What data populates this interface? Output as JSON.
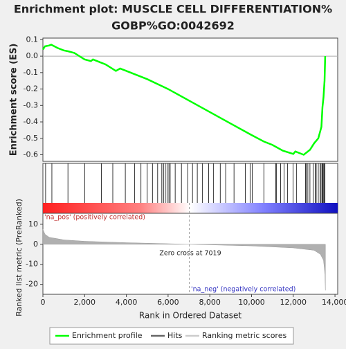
{
  "chart_data": [
    {
      "type": "line",
      "title": "Enrichment plot: MUSCLE CELL DIFFERENTIATION%",
      "subtitle": "GOBP%GO:0042692",
      "ylabel": "Enrichment score (ES)",
      "ylim": [
        -0.64,
        0.11
      ],
      "yticks": [
        0.1,
        {
          "value": 0,
          "label": "0.0"
        },
        -0.1,
        -0.2,
        -0.3,
        -0.4,
        -0.5,
        -0.6
      ],
      "grid": false,
      "series": [
        {
          "name": "Enrichment profile",
          "color": "#00ff00",
          "x": [
            0,
            100,
            300,
            400,
            700,
            1000,
            1200,
            1500,
            2000,
            2300,
            2400,
            2700,
            3000,
            3500,
            3700,
            4000,
            5000,
            6000,
            7000,
            8000,
            9000,
            10000,
            10600,
            11000,
            11500,
            12000,
            12100,
            12500,
            12800,
            13000,
            13200,
            13350,
            13400,
            13450,
            13500,
            13530
          ],
          "values": [
            0.04,
            0.06,
            0.065,
            0.07,
            0.05,
            0.035,
            0.03,
            0.02,
            -0.02,
            -0.03,
            -0.02,
            -0.035,
            -0.05,
            -0.09,
            -0.075,
            -0.09,
            -0.14,
            -0.2,
            -0.27,
            -0.34,
            -0.41,
            -0.48,
            -0.52,
            -0.54,
            -0.575,
            -0.595,
            -0.58,
            -0.6,
            -0.57,
            -0.53,
            -0.5,
            -0.43,
            -0.31,
            -0.25,
            -0.15,
            0.0
          ]
        }
      ]
    },
    {
      "type": "rug",
      "name": "Hits",
      "color": "#000000",
      "positions": [
        130,
        430,
        1200,
        2000,
        2800,
        3350,
        3950,
        4400,
        4700,
        5000,
        5250,
        5500,
        5700,
        5780,
        5870,
        5950,
        6040,
        6100,
        6340,
        6640,
        6940,
        7170,
        7400,
        7640,
        7940,
        8170,
        8500,
        8760,
        9160,
        9700,
        9930,
        10030,
        10590,
        11160,
        11200,
        11390,
        11560,
        11720,
        11990,
        12150,
        12590,
        12620,
        12700,
        12800,
        12950,
        13050,
        13100,
        13200,
        13280,
        13330,
        13380,
        13420,
        13460,
        13500,
        13520
      ]
    },
    {
      "type": "area",
      "ylabel": "Ranked list metric (PreRanked)",
      "xlabel": "Rank in Ordered Dataset",
      "pos_label": "'na_pos' (positively correlated)",
      "neg_label": "'na_neg' (negatively correlated)",
      "zero_cross_label": "Zero cross at 7019",
      "zero_cross": 7019,
      "xlim": [
        0,
        14130
      ],
      "xticks": [
        0,
        {
          "value": 2000,
          "label": "2,000"
        },
        {
          "value": 4000,
          "label": "4,000"
        },
        {
          "value": 6000,
          "label": "6,000"
        },
        {
          "value": 8000,
          "label": "8,000"
        },
        {
          "value": 10000,
          "label": "10,000"
        },
        {
          "value": 12000,
          "label": "12,000"
        },
        {
          "value": 14000,
          "label": "14,000"
        }
      ],
      "ylim": [
        -25,
        15.5
      ],
      "yticks": [
        10,
        0,
        -10,
        -20
      ],
      "series": [
        {
          "name": "Ranking metric scores",
          "color": "#b0b0b0",
          "x": [
            0,
            100,
            300,
            1000,
            2000,
            4000,
            7019,
            10000,
            12000,
            13000,
            13300,
            13450,
            13520,
            13540
          ],
          "values": [
            7.5,
            5,
            3.5,
            2.2,
            1.5,
            0.8,
            0,
            -0.8,
            -1.8,
            -3,
            -5,
            -8,
            -15,
            -23
          ]
        }
      ]
    }
  ]
}
